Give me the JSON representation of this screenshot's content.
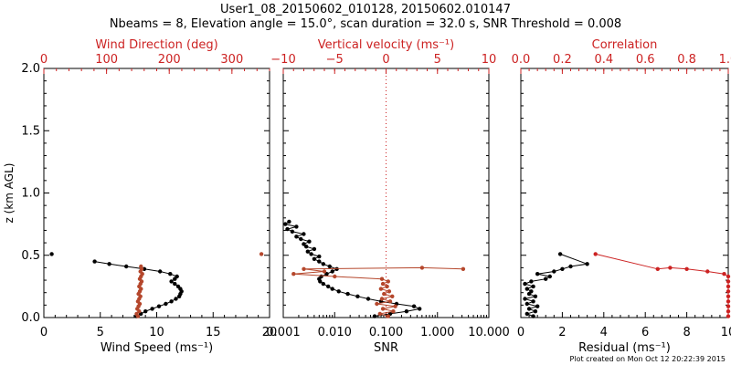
{
  "header": {
    "title_line1": "User1_08_20150602_010128, 20150602.010147",
    "title_line2": "Nbeams = 8, Elevation angle = 15.0°, scan duration = 32.0 s, SNR Threshold = 0.008"
  },
  "footer": {
    "text": "Plot created on Mon Oct 12 20:22:39 2015"
  },
  "colors": {
    "black": "#000000",
    "red": "#cc2222",
    "brown": "#b5472c"
  },
  "chart_data": [
    {
      "type": "scatter",
      "panel": "wind",
      "ylabel": "z (km AGL)",
      "ylim": [
        0,
        2.0
      ],
      "yticks": [
        "0.0",
        "0.5",
        "1.0",
        "1.5",
        "2.0"
      ],
      "xlabel": "Wind Speed (ms⁻¹)",
      "xlim": [
        0,
        20
      ],
      "xticks": [
        "0",
        "5",
        "10",
        "15",
        "20"
      ],
      "top_label": "Wind Direction (deg)",
      "top_lim": [
        0,
        360
      ],
      "top_ticks": [
        "0",
        "100",
        "200",
        "300"
      ],
      "series": [
        {
          "axis": "bottom",
          "color": "black",
          "points": [
            [
              8.2,
              0.01
            ],
            [
              8.6,
              0.03
            ],
            [
              9.0,
              0.05
            ],
            [
              9.6,
              0.07
            ],
            [
              10.2,
              0.09
            ],
            [
              10.8,
              0.11
            ],
            [
              11.3,
              0.13
            ],
            [
              11.7,
              0.15
            ],
            [
              12.0,
              0.17
            ],
            [
              12.1,
              0.19
            ],
            [
              12.2,
              0.21
            ],
            [
              12.1,
              0.23
            ],
            [
              11.9,
              0.25
            ],
            [
              11.6,
              0.27
            ],
            [
              11.3,
              0.29
            ],
            [
              11.6,
              0.31
            ],
            [
              11.8,
              0.33
            ],
            [
              11.2,
              0.35
            ],
            [
              10.3,
              0.37
            ],
            [
              8.9,
              0.39
            ],
            [
              7.3,
              0.41
            ],
            [
              5.8,
              0.43
            ],
            [
              4.5,
              0.45
            ]
          ]
        },
        {
          "axis": "bottom",
          "color": "black",
          "points": [
            [
              0.7,
              0.51
            ]
          ]
        },
        {
          "axis": "top",
          "color": "brown",
          "points": [
            [
              150,
              0.01
            ],
            [
              148,
              0.03
            ],
            [
              152,
              0.05
            ],
            [
              149,
              0.07
            ],
            [
              151,
              0.09
            ],
            [
              153,
              0.11
            ],
            [
              150,
              0.13
            ],
            [
              152,
              0.15
            ],
            [
              154,
              0.17
            ],
            [
              151,
              0.19
            ],
            [
              153,
              0.21
            ],
            [
              155,
              0.23
            ],
            [
              152,
              0.25
            ],
            [
              154,
              0.27
            ],
            [
              156,
              0.29
            ],
            [
              153,
              0.31
            ],
            [
              155,
              0.33
            ],
            [
              157,
              0.35
            ],
            [
              154,
              0.37
            ],
            [
              156,
              0.39
            ],
            [
              155,
              0.41
            ]
          ]
        },
        {
          "axis": "top",
          "color": "brown",
          "points": [
            [
              347,
              0.51
            ]
          ]
        }
      ]
    },
    {
      "type": "scatter",
      "panel": "snr",
      "ylim": [
        0,
        2.0
      ],
      "xlabel": "SNR",
      "xscale": "log",
      "xlim": [
        0.001,
        10
      ],
      "xticks": [
        "0.001",
        "0.010",
        "0.100",
        "1.000",
        "10.000"
      ],
      "top_label": "Vertical velocity (ms⁻¹)",
      "top_lim": [
        -10,
        10
      ],
      "top_ticks": [
        "−10",
        "−5",
        "0",
        "5",
        "10"
      ],
      "zero_line": "dotted red at vertical velocity 0",
      "series": [
        {
          "axis": "bottom",
          "color": "black",
          "points": [
            [
              0.06,
              0.01
            ],
            [
              0.12,
              0.03
            ],
            [
              0.25,
              0.05
            ],
            [
              0.45,
              0.07
            ],
            [
              0.35,
              0.09
            ],
            [
              0.16,
              0.11
            ],
            [
              0.08,
              0.13
            ],
            [
              0.045,
              0.15
            ],
            [
              0.028,
              0.17
            ],
            [
              0.018,
              0.19
            ],
            [
              0.012,
              0.21
            ],
            [
              0.009,
              0.23
            ],
            [
              0.0075,
              0.25
            ],
            [
              0.006,
              0.27
            ],
            [
              0.0052,
              0.29
            ],
            [
              0.005,
              0.31
            ],
            [
              0.0055,
              0.33
            ],
            [
              0.007,
              0.35
            ],
            [
              0.009,
              0.37
            ],
            [
              0.011,
              0.39
            ],
            [
              0.008,
              0.41
            ],
            [
              0.006,
              0.43
            ],
            [
              0.005,
              0.45
            ],
            [
              0.004,
              0.47
            ],
            [
              0.005,
              0.49
            ],
            [
              0.0035,
              0.51
            ],
            [
              0.003,
              0.53
            ],
            [
              0.004,
              0.55
            ],
            [
              0.0028,
              0.57
            ],
            [
              0.0025,
              0.59
            ],
            [
              0.0032,
              0.61
            ],
            [
              0.0022,
              0.63
            ],
            [
              0.0018,
              0.65
            ],
            [
              0.0025,
              0.67
            ],
            [
              0.0015,
              0.69
            ],
            [
              0.0012,
              0.71
            ],
            [
              0.0018,
              0.73
            ],
            [
              0.0011,
              0.75
            ],
            [
              0.0013,
              0.77
            ]
          ]
        },
        {
          "axis": "top",
          "color": "brown",
          "points": [
            [
              0.2,
              0.01
            ],
            [
              -0.6,
              0.03
            ],
            [
              0.7,
              0.05
            ],
            [
              -0.3,
              0.07
            ],
            [
              0.9,
              0.09
            ],
            [
              -0.9,
              0.11
            ],
            [
              0.4,
              0.13
            ],
            [
              -0.4,
              0.15
            ],
            [
              0.6,
              0.17
            ],
            [
              -0.2,
              0.19
            ],
            [
              0.3,
              0.21
            ],
            [
              -0.5,
              0.23
            ],
            [
              0.1,
              0.25
            ],
            [
              -0.3,
              0.27
            ],
            [
              0.2,
              0.29
            ],
            [
              -0.4,
              0.31
            ],
            [
              -5.0,
              0.33
            ],
            [
              -9.0,
              0.35
            ],
            [
              -6.0,
              0.37
            ],
            [
              -8.0,
              0.39
            ],
            [
              3.5,
              0.4
            ],
            [
              7.5,
              0.39
            ]
          ]
        }
      ]
    },
    {
      "type": "scatter",
      "panel": "residual",
      "ylim": [
        0,
        2.0
      ],
      "xlabel": "Residual (ms⁻¹)",
      "xlim": [
        0,
        10
      ],
      "xticks": [
        "0",
        "2",
        "4",
        "6",
        "8",
        "10"
      ],
      "top_label": "Correlation",
      "top_lim": [
        0,
        1.0
      ],
      "top_ticks": [
        "0.0",
        "0.2",
        "0.4",
        "0.6",
        "0.8",
        "1.0"
      ],
      "series": [
        {
          "axis": "bottom",
          "color": "black",
          "points": [
            [
              0.6,
              0.01
            ],
            [
              0.3,
              0.03
            ],
            [
              0.7,
              0.05
            ],
            [
              0.4,
              0.07
            ],
            [
              0.8,
              0.09
            ],
            [
              0.3,
              0.11
            ],
            [
              0.6,
              0.13
            ],
            [
              0.2,
              0.15
            ],
            [
              0.7,
              0.17
            ],
            [
              0.4,
              0.19
            ],
            [
              0.5,
              0.21
            ],
            [
              0.3,
              0.23
            ],
            [
              0.6,
              0.25
            ],
            [
              0.2,
              0.27
            ],
            [
              0.5,
              0.29
            ],
            [
              1.2,
              0.31
            ],
            [
              1.4,
              0.33
            ],
            [
              0.8,
              0.35
            ],
            [
              1.6,
              0.37
            ],
            [
              2.0,
              0.39
            ],
            [
              2.4,
              0.41
            ],
            [
              3.2,
              0.43
            ],
            [
              1.9,
              0.51
            ]
          ]
        },
        {
          "axis": "top",
          "color": "red",
          "points": [
            [
              1.0,
              0.01
            ],
            [
              1.0,
              0.05
            ],
            [
              1.0,
              0.09
            ],
            [
              1.0,
              0.13
            ],
            [
              1.0,
              0.17
            ],
            [
              1.0,
              0.21
            ],
            [
              1.0,
              0.25
            ],
            [
              1.0,
              0.29
            ],
            [
              1.0,
              0.33
            ],
            [
              0.98,
              0.35
            ],
            [
              0.9,
              0.37
            ],
            [
              0.8,
              0.39
            ],
            [
              0.72,
              0.4
            ],
            [
              0.66,
              0.39
            ],
            [
              0.36,
              0.51
            ]
          ]
        }
      ]
    }
  ]
}
